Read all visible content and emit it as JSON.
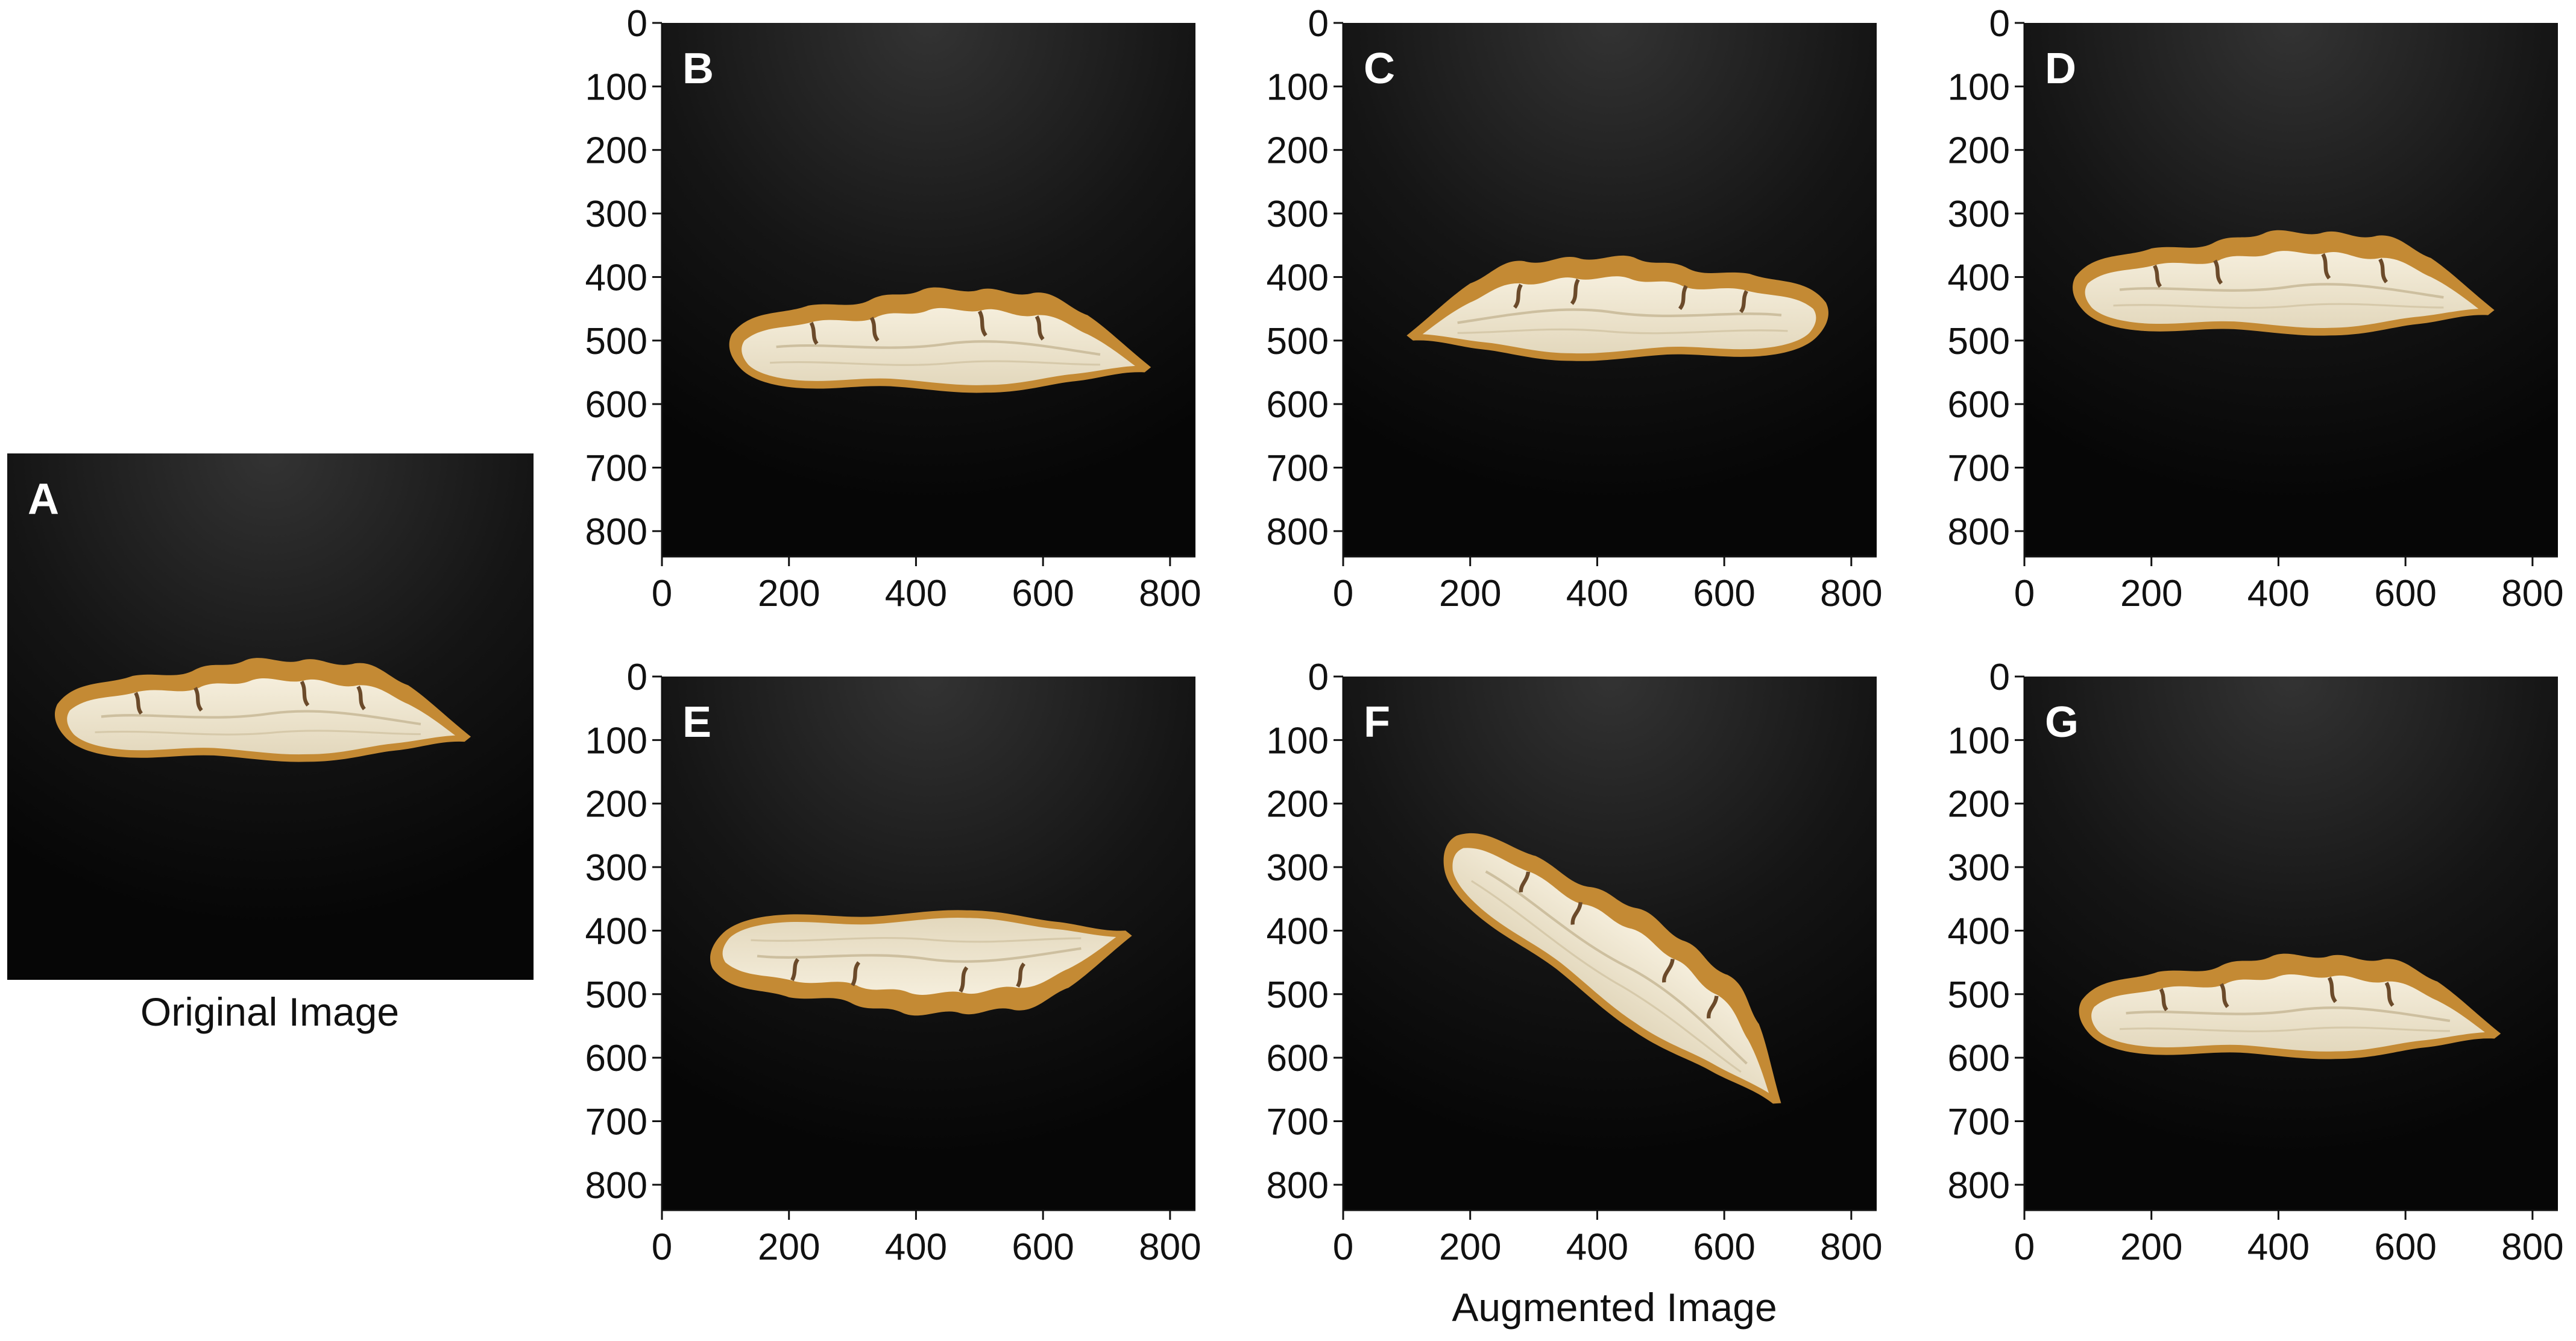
{
  "figure": {
    "original": {
      "label": "A",
      "caption": "Original Image"
    },
    "augmented_caption": "Augmented Image",
    "panels": [
      {
        "label": "B",
        "transform": "shift",
        "dx": 30,
        "dy": 90,
        "rotate": 0,
        "flip_x": false,
        "flip_y": false
      },
      {
        "label": "C",
        "transform": "horizontal-flip",
        "dx": 0,
        "dy": 40,
        "rotate": 0,
        "flip_x": true,
        "flip_y": false
      },
      {
        "label": "D",
        "transform": "shift",
        "dx": 0,
        "dy": 0,
        "rotate": 0,
        "flip_x": false,
        "flip_y": false
      },
      {
        "label": "E",
        "transform": "vertical-flip",
        "dx": 0,
        "dy": 0,
        "rotate": 0,
        "flip_x": false,
        "flip_y": true
      },
      {
        "label": "F",
        "transform": "rotation",
        "dx": 20,
        "dy": 40,
        "rotate": 35,
        "flip_x": false,
        "flip_y": false
      },
      {
        "label": "G",
        "transform": "shift",
        "dx": 10,
        "dy": 110,
        "rotate": 0,
        "flip_x": false,
        "flip_y": false
      }
    ],
    "x_ticks": [
      "0",
      "200",
      "400",
      "600",
      "800"
    ],
    "y_ticks": [
      "0",
      "100",
      "200",
      "300",
      "400",
      "500",
      "600",
      "700",
      "800"
    ],
    "axis_range": [
      0,
      840
    ],
    "colors": {
      "panel_bg_top": "#2a2a2a",
      "panel_bg_bottom": "#070707",
      "slice_core": "#efe7d2",
      "slice_bark": "#c48a34",
      "slice_ring": "#6b4a2a",
      "label_text": "#ffffff",
      "axis_text": "#111111"
    }
  }
}
